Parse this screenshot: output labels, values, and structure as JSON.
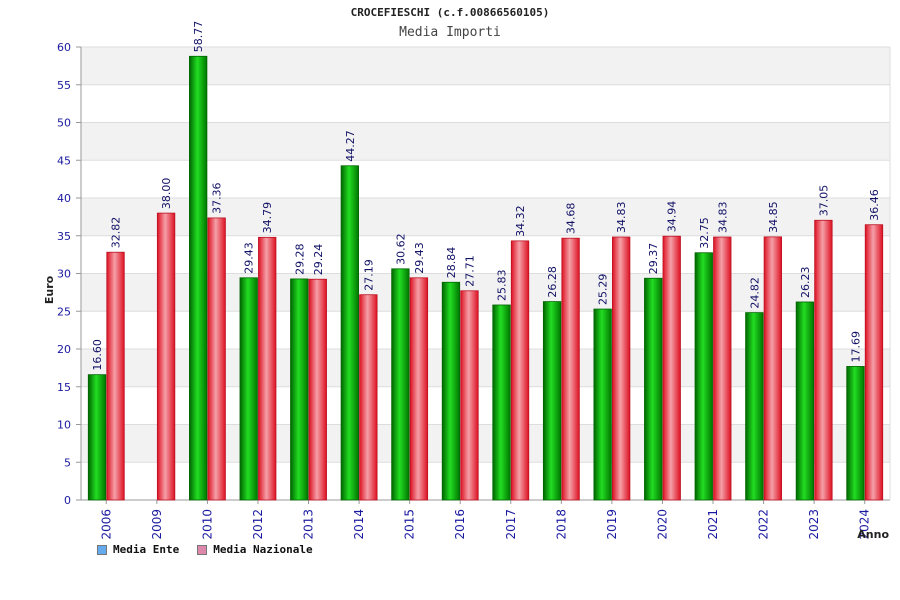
{
  "chart_data": {
    "type": "bar",
    "title": "CROCEFIESCHI (c.f.00866560105)",
    "subtitle": "Media Importi",
    "ylabel": "Euro",
    "xlabel": "Anno",
    "ylim": [
      0,
      60
    ],
    "yticks": [
      0,
      5,
      10,
      15,
      20,
      25,
      30,
      35,
      40,
      45,
      50,
      55,
      60
    ],
    "categories": [
      "2006",
      "2009",
      "2010",
      "2012",
      "2013",
      "2014",
      "2015",
      "2016",
      "2017",
      "2018",
      "2019",
      "2020",
      "2021",
      "2022",
      "2023",
      "2024"
    ],
    "series": [
      {
        "name": "Media Ente",
        "color": "#00aa00",
        "legend_color": "#66aaee",
        "values": [
          16.6,
          null,
          58.77,
          29.43,
          29.28,
          44.27,
          30.62,
          28.84,
          25.83,
          26.28,
          25.29,
          29.37,
          32.75,
          24.82,
          26.23,
          17.69
        ]
      },
      {
        "name": "Media Nazionale",
        "color": "#ee2233",
        "legend_color": "#dd88aa",
        "values": [
          32.82,
          38.0,
          37.36,
          34.79,
          29.24,
          27.19,
          29.43,
          27.71,
          34.32,
          34.68,
          34.83,
          34.94,
          34.83,
          34.85,
          37.05,
          36.46
        ]
      }
    ],
    "grid": true,
    "legend_position": "bottom-left"
  }
}
